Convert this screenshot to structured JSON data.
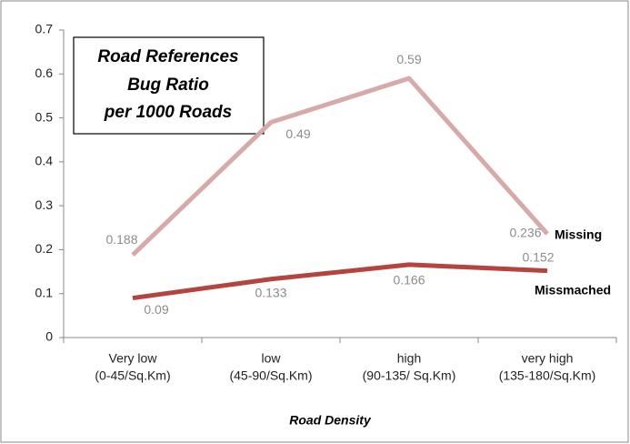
{
  "chart_data": {
    "type": "line",
    "title": [
      "Road References",
      "Bug Ratio",
      "per 1000 Roads"
    ],
    "x_label": "Road Density",
    "categories": [
      [
        "Very low",
        "(0-45/Sq.Km)"
      ],
      [
        "low",
        "(45-90/Sq.Km)"
      ],
      [
        "high",
        "(90-135/ Sq.Km)"
      ],
      [
        "very high",
        "(135-180/Sq.Km)"
      ]
    ],
    "series": [
      {
        "name": "Missing",
        "color": "#d8a9a9",
        "values": [
          0.188,
          0.49,
          0.59,
          0.236
        ]
      },
      {
        "name": "Missmached",
        "color": "#b5433f",
        "values": [
          0.09,
          0.133,
          0.166,
          0.152
        ]
      }
    ],
    "ylim": [
      0,
      0.7
    ],
    "yticks": [
      0,
      0.1,
      0.2,
      0.3,
      0.4,
      0.5,
      0.6,
      0.7
    ],
    "grid": false
  }
}
